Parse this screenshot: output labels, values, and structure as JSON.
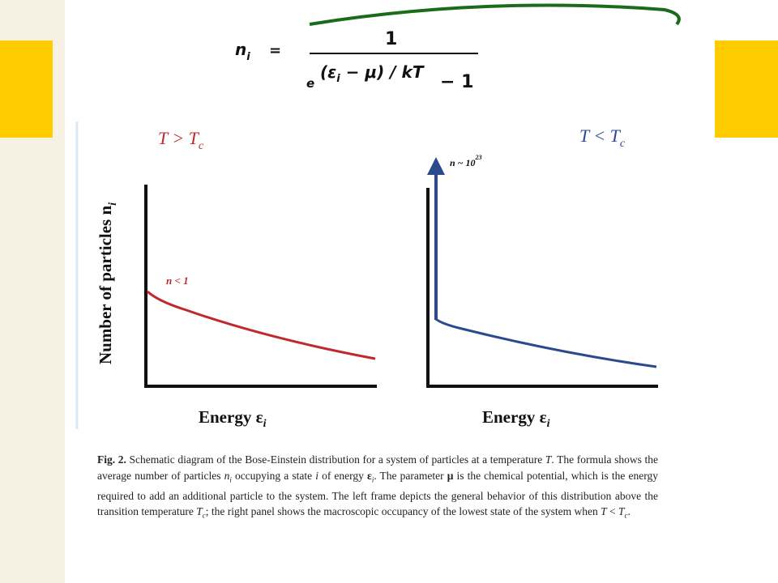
{
  "formula": {
    "lhs": {
      "main": "n",
      "sub": "i"
    },
    "equals": "=",
    "numerator": "1",
    "base": "e",
    "exponent": {
      "open": "(ε",
      "sub": "i",
      "rest": " − μ) / kT"
    },
    "minus_one": "− 1"
  },
  "y_label": {
    "main": "Number of particles n",
    "sub": "i"
  },
  "panels": [
    {
      "title": {
        "main": "T > T",
        "sub": "c"
      },
      "annotation": "n < 1",
      "x_label": {
        "main": "Energy  ε",
        "sub": "i"
      }
    },
    {
      "title": {
        "main": "T < T",
        "sub": "c"
      },
      "annotation": {
        "main": "n ~ 10",
        "sup": "23"
      },
      "x_label": {
        "main": "Energy  ε",
        "sub": "i"
      }
    }
  ],
  "caption": {
    "label": "Fig. 2.",
    "runs": [
      {
        "text": "Schematic diagram of the Bose-Einstein distribution for a system of particles at a temperature "
      },
      {
        "text": "T",
        "style": "i"
      },
      {
        "text": ". The formula shows the average number of particles "
      },
      {
        "text": "n",
        "style": "i"
      },
      {
        "text": "i",
        "style": "sub"
      },
      {
        "text": " occupying a state "
      },
      {
        "text": "i",
        "style": "i"
      },
      {
        "text": " of energy "
      },
      {
        "text": "ε",
        "style": "b"
      },
      {
        "text": "i",
        "style": "sub"
      },
      {
        "text": ". The parameter "
      },
      {
        "text": "μ",
        "style": "b"
      },
      {
        "text": " is the chemical potential, which is the energy required to add an additional particle to the system. The left frame depicts the general behavior of this distribution above the transition temperature "
      },
      {
        "text": "T",
        "style": "i"
      },
      {
        "text": "c",
        "style": "sub"
      },
      {
        "text": "; the right panel shows the macroscopic occupancy of the lowest state of the system when "
      },
      {
        "text": "T",
        "style": "i"
      },
      {
        "text": " < "
      },
      {
        "text": "T",
        "style": "i"
      },
      {
        "text": "c",
        "style": "sub"
      },
      {
        "text": "."
      }
    ]
  }
}
